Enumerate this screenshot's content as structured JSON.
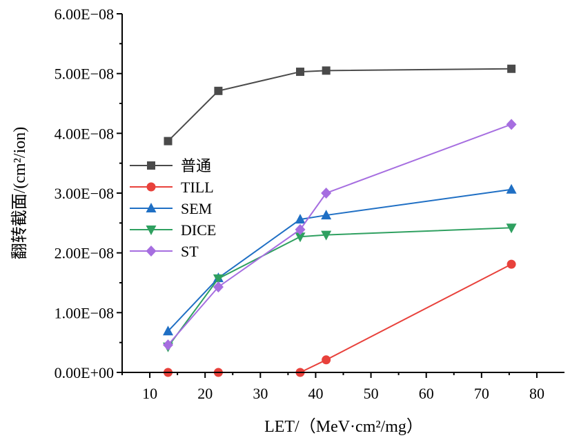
{
  "chart_data": {
    "type": "line",
    "xlabel": "LET/（MeV·cm²/mg）",
    "ylabel": "翻转截面/(cm²/ion)",
    "xlim": [
      5,
      85
    ],
    "ylim": [
      0,
      6e-08
    ],
    "xticks": [
      10,
      20,
      30,
      40,
      50,
      60,
      70,
      80
    ],
    "xtick_labels": [
      "10",
      "20",
      "30",
      "40",
      "50",
      "60",
      "70",
      "80"
    ],
    "yticks": [
      0,
      1e-08,
      2e-08,
      3e-08,
      4e-08,
      5e-08,
      6e-08
    ],
    "ytick_labels": [
      "0.00E+00",
      "1.00E−08",
      "2.00E−08",
      "3.00E−08",
      "4.00E−08",
      "5.00E−08",
      "6.00E−08"
    ],
    "grid": false,
    "legend_position": "left",
    "series": [
      {
        "name": "普通",
        "color": "#4a4a4a",
        "marker": "square",
        "x": [
          13.3,
          22.4,
          37.2,
          41.9,
          75.4
        ],
        "y": [
          3.87e-08,
          4.71e-08,
          5.03e-08,
          5.05e-08,
          5.08e-08
        ]
      },
      {
        "name": "TILL",
        "color": "#e8413b",
        "marker": "circle",
        "x": [
          13.3,
          22.4,
          37.2,
          41.9,
          75.4
        ],
        "y": [
          0,
          0,
          0,
          2.1e-09,
          1.81e-08
        ]
      },
      {
        "name": "SEM",
        "color": "#1f6fc4",
        "marker": "triangle-up",
        "x": [
          13.3,
          22.4,
          37.2,
          41.9,
          75.4
        ],
        "y": [
          6.9e-09,
          1.58e-08,
          2.56e-08,
          2.63e-08,
          3.06e-08
        ]
      },
      {
        "name": "DICE",
        "color": "#2fa060",
        "marker": "triangle-down",
        "x": [
          13.3,
          22.4,
          37.2,
          41.9,
          75.4
        ],
        "y": [
          4.3e-09,
          1.57e-08,
          2.27e-08,
          2.3e-08,
          2.42e-08
        ]
      },
      {
        "name": "ST",
        "color": "#a66ee0",
        "marker": "diamond",
        "x": [
          13.3,
          22.4,
          37.2,
          41.9,
          75.4
        ],
        "y": [
          4.6e-09,
          1.43e-08,
          2.39e-08,
          3e-08,
          4.15e-08
        ]
      }
    ]
  }
}
